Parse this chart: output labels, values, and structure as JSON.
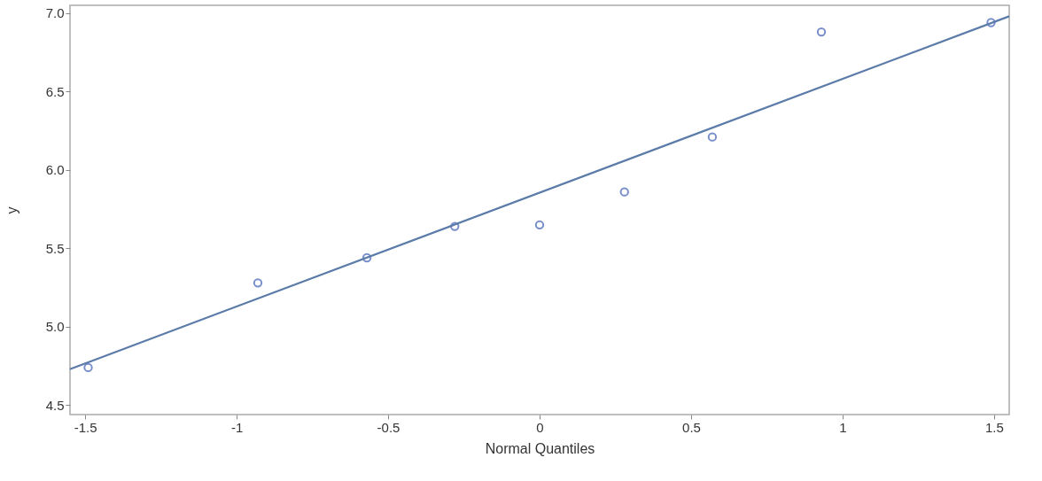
{
  "chart_data": {
    "type": "scatter",
    "xlabel": "Normal Quantiles",
    "ylabel": "y",
    "xlim": [
      -1.55,
      1.55
    ],
    "ylim": [
      4.44,
      7.05
    ],
    "xticks": [
      -1.5,
      -1,
      -0.5,
      0,
      0.5,
      1,
      1.5
    ],
    "yticks": [
      {
        "value": 4.5,
        "label": "4.5"
      },
      {
        "value": 5,
        "label": "5.0"
      },
      {
        "value": 5.5,
        "label": "5.5"
      },
      {
        "value": 6,
        "label": "6.0"
      },
      {
        "value": 6.5,
        "label": "6.5"
      },
      {
        "value": 7,
        "label": "7.0"
      }
    ],
    "grid": false,
    "marker": "circle",
    "series": [
      {
        "color": "#3f5fb5",
        "x": [
          -1.49,
          -0.93,
          -0.57,
          -0.28,
          0,
          0.28,
          0.57,
          0.93,
          1.49
        ],
        "values": [
          4.74,
          5.28,
          5.44,
          5.64,
          5.65,
          5.86,
          6.21,
          6.88,
          6.94
        ]
      },
      {
        "type": "line",
        "marker": "none",
        "color": "#5b7ba8",
        "x": [
          -1.55,
          1.55
        ],
        "values": [
          4.73,
          6.98
        ]
      }
    ]
  }
}
